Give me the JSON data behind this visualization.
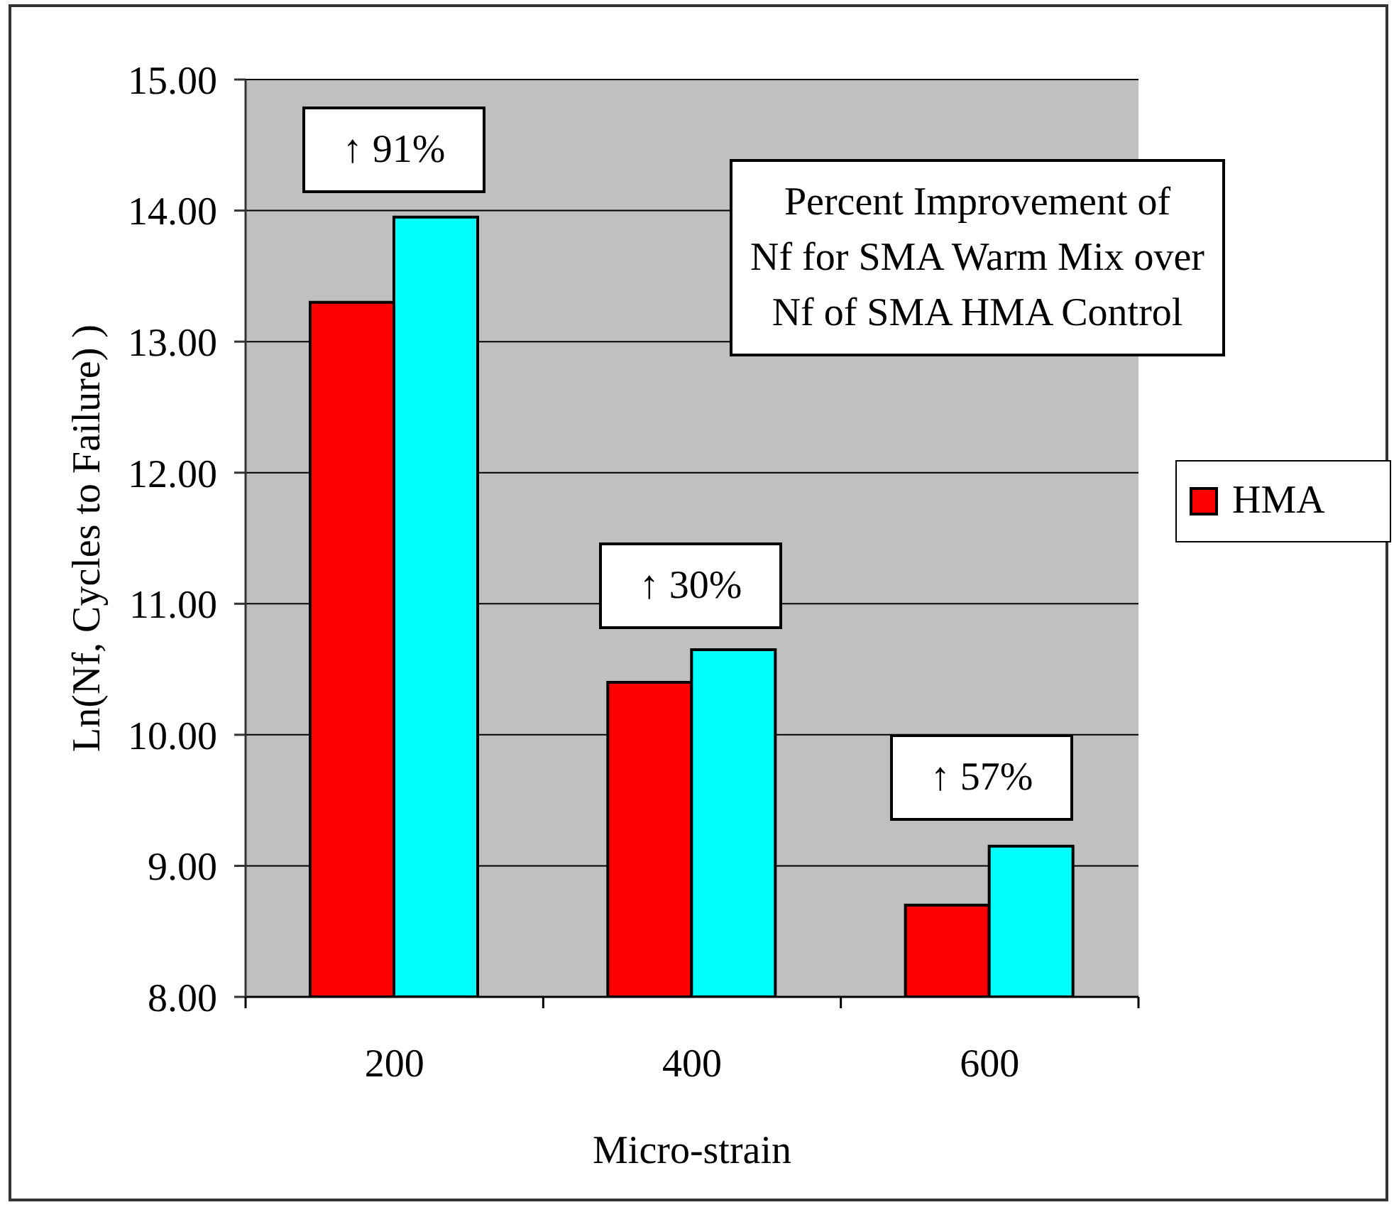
{
  "chart_data": {
    "type": "bar",
    "xlabel": "Micro-strain",
    "ylabel": "Ln(Nf, Cycles to Failure)  )",
    "categories": [
      "200",
      "400",
      "600"
    ],
    "series": [
      {
        "name": "HMA",
        "color": "#ff0000",
        "values": [
          13.3,
          10.4,
          8.7
        ]
      },
      {
        "color": "#00ffff",
        "values": [
          13.95,
          10.65,
          9.15
        ]
      }
    ],
    "ylim": [
      8,
      15
    ],
    "yticks": [
      {
        "value": 8,
        "label": "8.00"
      },
      {
        "value": 9,
        "label": "9.00"
      },
      {
        "value": 10,
        "label": "10.00"
      },
      {
        "value": 11,
        "label": "11.00"
      },
      {
        "value": 12,
        "label": "12.00"
      },
      {
        "value": 13,
        "label": "13.00"
      },
      {
        "value": 14,
        "label": "14.00"
      },
      {
        "value": 15,
        "label": "15.00"
      }
    ],
    "grid": "y",
    "legend": "right",
    "annotations": [
      "↑ 91%",
      "↑ 30%",
      "↑ 57%",
      "Percent Improvement of\nNf for SMA Warm Mix over\nNf of SMA HMA Control"
    ]
  }
}
